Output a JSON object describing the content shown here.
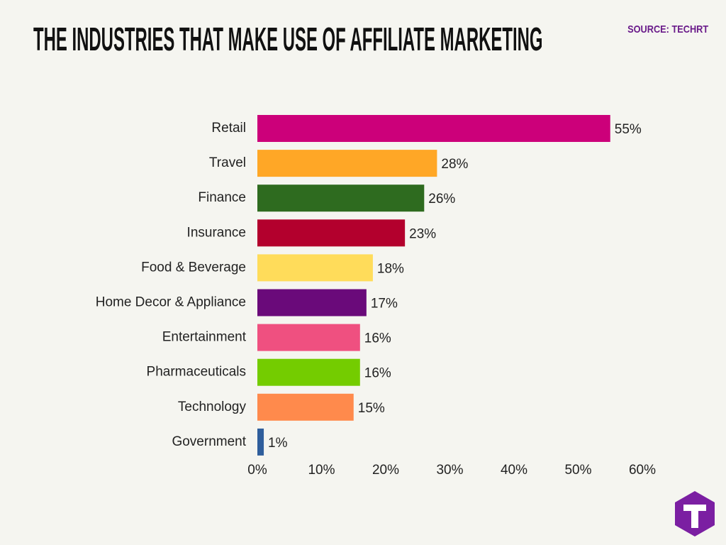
{
  "chart_data": {
    "type": "bar",
    "orientation": "horizontal",
    "title": "THE INDUSTRIES THAT MAKE USE OF AFFILIATE MARKETING",
    "source": "SOURCE: TECHRT",
    "categories": [
      "Retail",
      "Travel",
      "Finance",
      "Insurance",
      "Food & Beverage",
      "Home Decor & Appliance",
      "Entertainment",
      "Pharmaceuticals",
      "Technology",
      "Government"
    ],
    "values": [
      55,
      28,
      26,
      23,
      18,
      17,
      16,
      16,
      15,
      1
    ],
    "value_labels": [
      "55%",
      "28%",
      "26%",
      "23%",
      "18%",
      "17%",
      "16%",
      "16%",
      "15%",
      "1%"
    ],
    "colors": [
      "#cc007a",
      "#ffa726",
      "#2e6b1f",
      "#b3002d",
      "#ffdc5a",
      "#6a0a7a",
      "#ef5080",
      "#74cc00",
      "#ff8a4c",
      "#2f5e9c"
    ],
    "xlim": [
      0,
      60
    ],
    "xticks": [
      {
        "value": 0,
        "label": "0%"
      },
      {
        "value": 10,
        "label": "10%"
      },
      {
        "value": 20,
        "label": "20%"
      },
      {
        "value": 30,
        "label": "30%"
      },
      {
        "value": 40,
        "label": "40%"
      },
      {
        "value": 50,
        "label": "50%"
      },
      {
        "value": 60,
        "label": "60%"
      }
    ],
    "grid": false
  }
}
